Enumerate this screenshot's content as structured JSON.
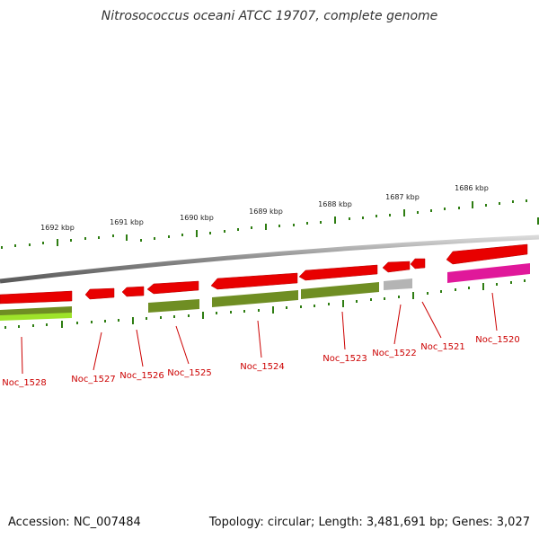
{
  "title": "Nitrosococcus oceani ATCC 19707, complete genome",
  "footer": {
    "accession": "Accession: NC_007484",
    "summary": "Topology: circular; Length: 3,481,691 bp; Genes: 3,027"
  },
  "colors": {
    "backbone": "#8c8c8c",
    "tick": "#2e7d12",
    "label": "#cc0000",
    "gene_red": "#e80000",
    "gene_olive": "#6f8e23",
    "gene_lime": "#9ee32a",
    "gene_gray": "#b4b4b4",
    "gene_magenta": "#e0189a"
  },
  "kbp_labels": [
    "1692 kbp",
    "1691 kbp",
    "1690 kbp",
    "1689 kbp",
    "1688 kbp",
    "1687 kbp",
    "1686 kbp"
  ],
  "genes": [
    "Noc_1528",
    "Noc_1527",
    "Noc_1526",
    "Noc_1525",
    "Noc_1524",
    "Noc_1523",
    "Noc_1522",
    "Noc_1521",
    "Noc_1520"
  ]
}
